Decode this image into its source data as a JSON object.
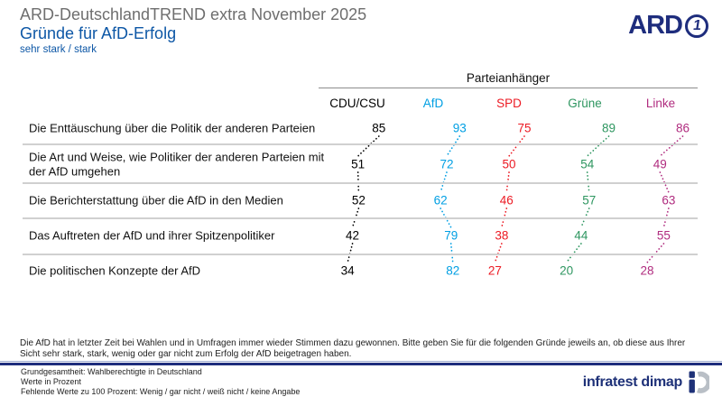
{
  "header": {
    "suptitle": "ARD-DeutschlandTREND extra November 2025",
    "title": "Gründe für AfD-Erfolg",
    "subtitle": "sehr stark / stark",
    "brand": "ARD"
  },
  "colors": {
    "accent_blue": "#0d57a6",
    "suptitle_gray": "#6e6e6e",
    "ard_navy": "#1e2d7d",
    "dimap_navy": "#1e3178",
    "dimap_gray": "#b9bfc6",
    "separator_gray": "#d0d0d0",
    "header_line_gray": "#8c8c8c"
  },
  "chart_data": {
    "type": "table",
    "title": "Gründe für AfD-Erfolg",
    "subtitle": "sehr stark / stark",
    "group_label": "Parteianhänger",
    "unit": "Prozent",
    "categories": [
      "Die Enttäuschung über die Politik der anderen Parteien",
      "Die Art und Weise, wie Politiker der anderen Parteien mit der AfD umgehen",
      "Die Berichterstattung über die AfD in den Medien",
      "Das Auftreten der AfD und ihrer Spitzenpolitiker",
      "Die politischen Konzepte der AfD"
    ],
    "series": [
      {
        "name": "CDU/CSU",
        "color": "#000000",
        "values": [
          85,
          51,
          52,
          42,
          34
        ]
      },
      {
        "name": "AfD",
        "color": "#009fe3",
        "values": [
          93,
          72,
          62,
          79,
          82
        ]
      },
      {
        "name": "SPD",
        "color": "#ec1b24",
        "values": [
          75,
          50,
          46,
          38,
          27
        ]
      },
      {
        "name": "Grüne",
        "color": "#2e9660",
        "values": [
          89,
          54,
          57,
          44,
          20
        ]
      },
      {
        "name": "Linke",
        "color": "#b02c7f",
        "values": [
          86,
          49,
          63,
          55,
          28
        ]
      }
    ],
    "layout": {
      "legend_position": "top",
      "grid": "horizontal row separators",
      "value_encoding": "number label offset horizontally around column center, dotted connectors between rows"
    }
  },
  "question": {
    "lines": [
      "Die AfD hat in letzter Zeit bei Wahlen und in Umfragen immer wieder Stimmen dazu gewonnen. Bitte geben Sie für die folgenden Gründe jeweils an, ob diese aus Ihrer",
      "Sicht sehr stark, stark, wenig oder gar nicht zum Erfolg der AfD beigetragen haben."
    ]
  },
  "footer": {
    "notes": [
      "Grundgesamtheit: Wahlberechtigte in Deutschland",
      "Werte in Prozent",
      "Fehlende Werte zu 100 Prozent: Wenig / gar nicht / weiß nicht / keine Angabe"
    ],
    "brand": "infratest dimap"
  }
}
